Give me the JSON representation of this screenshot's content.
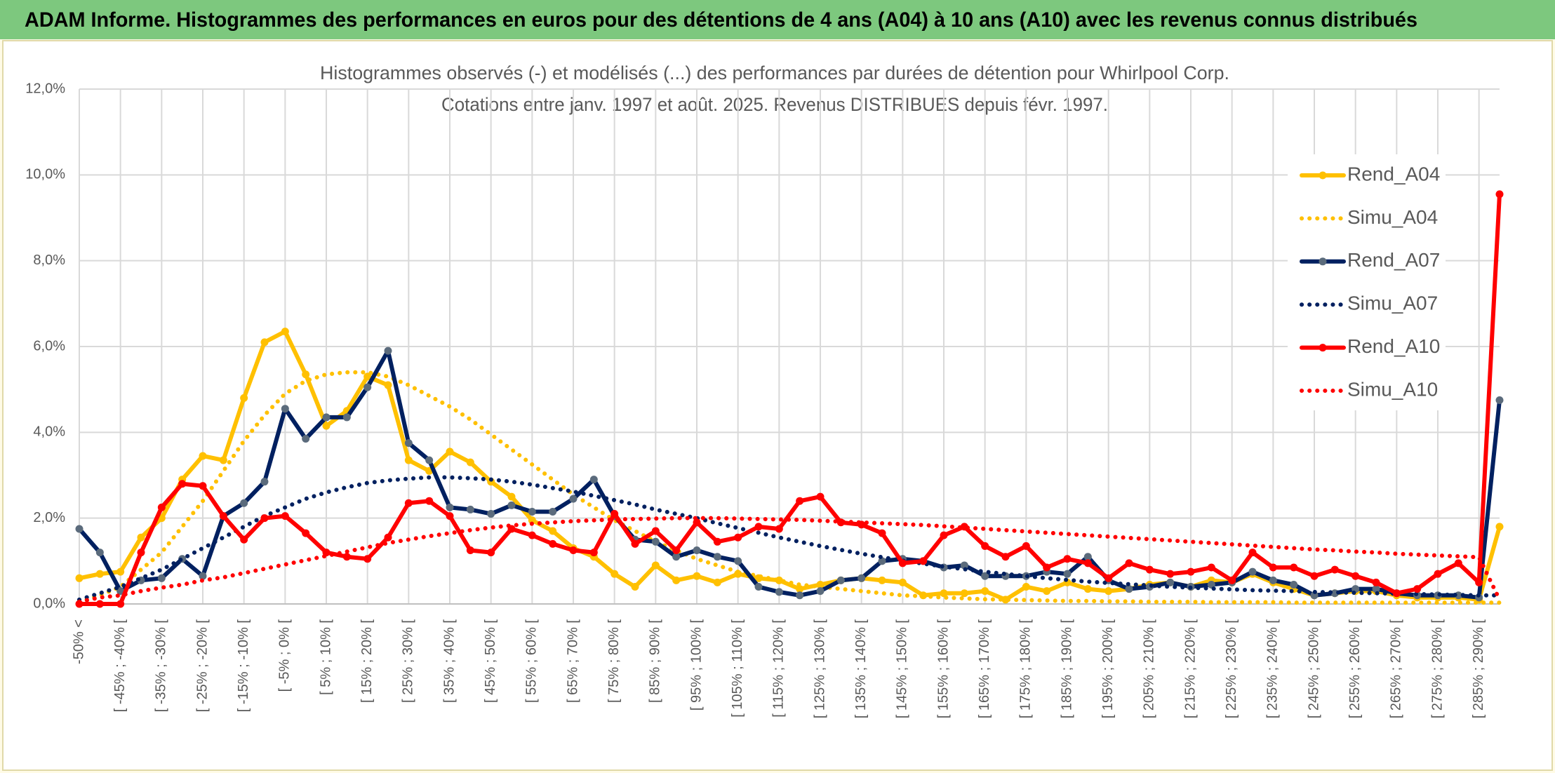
{
  "header": "ADAM Informe. Histogrammes des performances en euros pour des détentions de 4 ans (A04) à 10 ans (A10) avec les revenus connus distribués",
  "chart_data": {
    "type": "line",
    "title": "Histogrammes observés (-) et modélisés (...) des performances par durées de détention pour Whirlpool Corp.",
    "subtitle": "Cotations entre janv. 1997 et août. 2025. Revenus DISTRIBUES depuis févr. 1997.",
    "categories": [
      "-50% <",
      null,
      "[ -45% ; -40% [",
      null,
      "[ -35% ; -30% [",
      null,
      "[ -25% ; -20% [",
      null,
      "[ -15% ; -10% [",
      null,
      "[ -5% ; 0% [",
      null,
      "[ 5% ; 10% [",
      null,
      "[ 15% ; 20% [",
      null,
      "[ 25% ; 30% [",
      null,
      "[ 35% ; 40% [",
      null,
      "[ 45% ; 50% [",
      null,
      "[ 55% ; 60% [",
      null,
      "[ 65% ; 70% [",
      null,
      "[ 75% ; 80% [",
      null,
      "[ 85% ; 90% [",
      null,
      "[ 95% ; 100% [",
      null,
      "[ 105% ; 110% [",
      null,
      "[ 115% ; 120% [",
      null,
      "[ 125% ; 130% [",
      null,
      "[ 135% ; 140% [",
      null,
      "[ 145% ; 150% [",
      null,
      "[ 155% ; 160% [",
      null,
      "[ 165% ; 170% [",
      null,
      "[ 175% ; 180% [",
      null,
      "[ 185% ; 190% [",
      null,
      "[ 195% ; 200% [",
      null,
      "[ 205% ; 210% [",
      null,
      "[ 215% ; 220% [",
      null,
      "[ 225% ; 230% [",
      null,
      "[ 235% ; 240% [",
      null,
      "[ 245% ; 250% [",
      null,
      "[ 255% ; 260% [",
      null,
      "[ 265% ; 270% [",
      null,
      "[ 275% ; 280% [",
      null,
      "[ 285% ; 290% [",
      null
    ],
    "series": [
      {
        "name": "Rend_A04",
        "color": "#ffc000",
        "style": "solid",
        "marker": true,
        "values": [
          0.6,
          0.7,
          0.75,
          1.55,
          2.0,
          2.9,
          3.45,
          3.35,
          4.8,
          6.1,
          6.35,
          5.35,
          4.15,
          4.5,
          5.3,
          5.1,
          3.35,
          3.1,
          3.55,
          3.3,
          2.85,
          2.5,
          1.95,
          1.7,
          1.3,
          1.1,
          0.7,
          0.4,
          0.9,
          0.55,
          0.65,
          0.5,
          0.7,
          0.6,
          0.55,
          0.35,
          0.45,
          0.55,
          0.6,
          0.55,
          0.5,
          0.2,
          0.25,
          0.25,
          0.3,
          0.1,
          0.4,
          0.3,
          0.5,
          0.35,
          0.3,
          0.35,
          0.45,
          0.5,
          0.4,
          0.55,
          0.5,
          0.7,
          0.5,
          0.35,
          0.2,
          0.25,
          0.3,
          0.3,
          0.2,
          0.15,
          0.15,
          0.15,
          0.1,
          1.8
        ]
      },
      {
        "name": "Simu_A04",
        "color": "#ffc000",
        "style": "dotted",
        "marker": false,
        "values": [
          0.05,
          0.2,
          0.4,
          0.8,
          1.2,
          1.8,
          2.4,
          3.1,
          3.8,
          4.4,
          4.9,
          5.2,
          5.35,
          5.4,
          5.4,
          5.3,
          5.1,
          4.85,
          4.6,
          4.3,
          3.95,
          3.6,
          3.25,
          2.9,
          2.55,
          2.25,
          1.95,
          1.7,
          1.45,
          1.25,
          1.05,
          0.9,
          0.75,
          0.65,
          0.55,
          0.45,
          0.4,
          0.35,
          0.3,
          0.25,
          0.2,
          0.18,
          0.15,
          0.13,
          0.11,
          0.1,
          0.09,
          0.08,
          0.07,
          0.07,
          0.06,
          0.06,
          0.05,
          0.05,
          0.05,
          0.04,
          0.04,
          0.04,
          0.04,
          0.03,
          0.03,
          0.03,
          0.03,
          0.03,
          0.03,
          0.03,
          0.03,
          0.03,
          0.03,
          0.03
        ]
      },
      {
        "name": "Rend_A07",
        "color": "#002060",
        "marker_color": "#5b6b7c",
        "style": "solid",
        "marker": true,
        "values": [
          1.75,
          1.2,
          0.3,
          0.55,
          0.6,
          1.05,
          0.65,
          2.05,
          2.35,
          2.85,
          4.55,
          3.85,
          4.35,
          4.35,
          5.05,
          5.9,
          3.75,
          3.35,
          2.25,
          2.2,
          2.1,
          2.3,
          2.15,
          2.15,
          2.45,
          2.9,
          2.05,
          1.5,
          1.45,
          1.1,
          1.25,
          1.1,
          1.0,
          0.4,
          0.28,
          0.2,
          0.3,
          0.55,
          0.6,
          1.0,
          1.05,
          1.0,
          0.85,
          0.9,
          0.65,
          0.65,
          0.65,
          0.75,
          0.7,
          1.1,
          0.55,
          0.35,
          0.4,
          0.5,
          0.4,
          0.45,
          0.5,
          0.75,
          0.55,
          0.45,
          0.2,
          0.25,
          0.35,
          0.35,
          0.25,
          0.2,
          0.2,
          0.2,
          0.15,
          4.75
        ]
      },
      {
        "name": "Simu_A07",
        "color": "#002060",
        "style": "dotted",
        "marker": false,
        "values": [
          0.1,
          0.25,
          0.4,
          0.6,
          0.8,
          1.05,
          1.3,
          1.55,
          1.8,
          2.05,
          2.25,
          2.45,
          2.6,
          2.72,
          2.82,
          2.88,
          2.92,
          2.95,
          2.95,
          2.93,
          2.9,
          2.85,
          2.78,
          2.7,
          2.62,
          2.52,
          2.42,
          2.32,
          2.2,
          2.1,
          2.0,
          1.88,
          1.77,
          1.66,
          1.55,
          1.45,
          1.35,
          1.26,
          1.17,
          1.09,
          1.01,
          0.94,
          0.87,
          0.81,
          0.75,
          0.7,
          0.65,
          0.6,
          0.56,
          0.52,
          0.49,
          0.46,
          0.43,
          0.4,
          0.38,
          0.36,
          0.34,
          0.32,
          0.31,
          0.3,
          0.28,
          0.27,
          0.26,
          0.25,
          0.24,
          0.23,
          0.22,
          0.21,
          0.2,
          0.2
        ]
      },
      {
        "name": "Rend_A10",
        "color": "#ff0000",
        "style": "solid",
        "marker": true,
        "values": [
          0.0,
          0.0,
          0.0,
          1.2,
          2.25,
          2.8,
          2.75,
          2.05,
          1.5,
          2.0,
          2.05,
          1.65,
          1.2,
          1.1,
          1.05,
          1.55,
          2.35,
          2.4,
          2.05,
          1.25,
          1.2,
          1.75,
          1.6,
          1.4,
          1.25,
          1.2,
          2.1,
          1.4,
          1.7,
          1.25,
          1.9,
          1.45,
          1.55,
          1.8,
          1.75,
          2.4,
          2.5,
          1.9,
          1.85,
          1.65,
          0.95,
          1.0,
          1.6,
          1.8,
          1.35,
          1.1,
          1.35,
          0.85,
          1.05,
          0.95,
          0.6,
          0.95,
          0.8,
          0.7,
          0.75,
          0.85,
          0.55,
          1.2,
          0.85,
          0.85,
          0.65,
          0.8,
          0.65,
          0.5,
          0.25,
          0.35,
          0.7,
          0.95,
          0.5,
          9.55
        ]
      },
      {
        "name": "Simu_A10",
        "color": "#ff0000",
        "style": "dotted",
        "marker": false,
        "values": [
          0.05,
          0.15,
          0.2,
          0.3,
          0.38,
          0.45,
          0.55,
          0.62,
          0.72,
          0.82,
          0.92,
          1.02,
          1.12,
          1.22,
          1.32,
          1.42,
          1.5,
          1.58,
          1.65,
          1.72,
          1.78,
          1.83,
          1.87,
          1.9,
          1.93,
          1.95,
          1.97,
          1.98,
          1.99,
          2.0,
          2.0,
          2.0,
          1.99,
          1.98,
          1.97,
          1.96,
          1.94,
          1.92,
          1.9,
          1.88,
          1.86,
          1.84,
          1.81,
          1.78,
          1.75,
          1.72,
          1.69,
          1.66,
          1.63,
          1.6,
          1.57,
          1.54,
          1.51,
          1.48,
          1.45,
          1.42,
          1.39,
          1.36,
          1.33,
          1.3,
          1.27,
          1.25,
          1.22,
          1.2,
          1.17,
          1.15,
          1.13,
          1.11,
          1.09,
          0.1
        ]
      }
    ],
    "ylim": [
      0,
      12
    ],
    "yticks": [
      {
        "value": 0,
        "label": "0,0%"
      },
      {
        "value": 2,
        "label": "2,0%"
      },
      {
        "value": 4,
        "label": "4,0%"
      },
      {
        "value": 6,
        "label": "6,0%"
      },
      {
        "value": 8,
        "label": "8,0%"
      },
      {
        "value": 10,
        "label": "10,0%"
      },
      {
        "value": 12,
        "label": "12,0%"
      }
    ],
    "grid": true,
    "legend": "right"
  }
}
